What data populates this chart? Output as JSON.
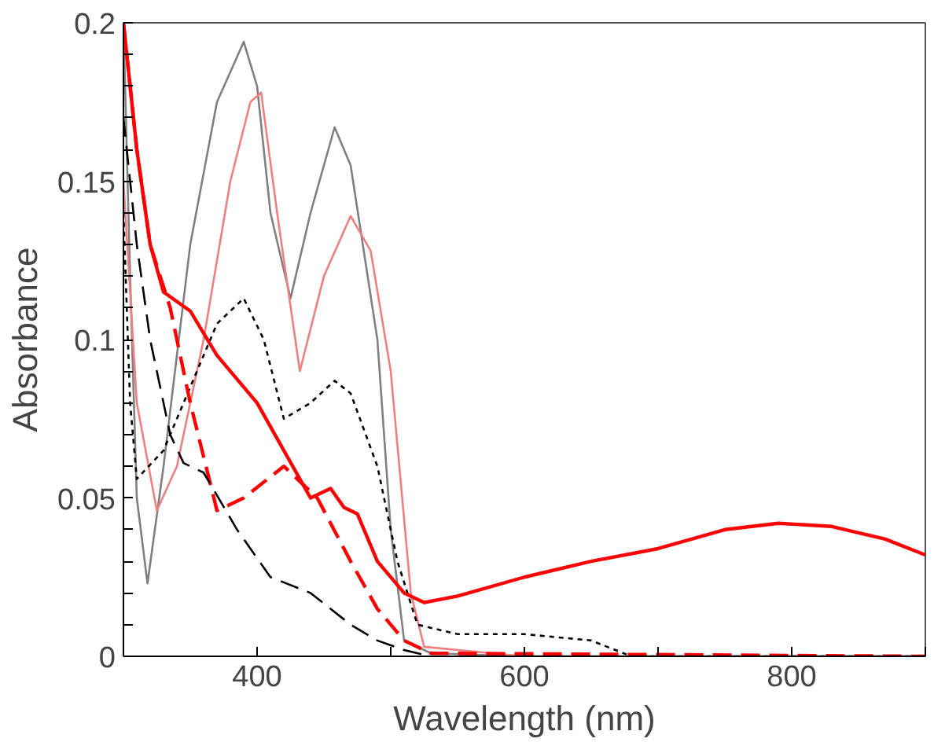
{
  "chart_data": {
    "type": "line",
    "xlabel": "Wavelength (nm)",
    "ylabel": "Absorbance",
    "xlim": [
      300,
      900
    ],
    "ylim": [
      0,
      0.2
    ],
    "xticks": [
      {
        "value": 300,
        "label": null
      },
      400,
      {
        "value": 500,
        "label": null
      },
      600,
      {
        "value": 700,
        "label": null
      },
      800,
      {
        "value": 900,
        "label": null
      }
    ],
    "yticks": [
      0,
      {
        "value": 0.01,
        "label": null
      },
      {
        "value": 0.02,
        "label": null
      },
      {
        "value": 0.03,
        "label": null
      },
      {
        "value": 0.04,
        "label": null
      },
      0.05,
      {
        "value": 0.06,
        "label": null
      },
      {
        "value": 0.07,
        "label": null
      },
      {
        "value": 0.08,
        "label": null
      },
      {
        "value": 0.09,
        "label": null
      },
      0.1,
      {
        "value": 0.11,
        "label": null
      },
      {
        "value": 0.12,
        "label": null
      },
      {
        "value": 0.13,
        "label": null
      },
      {
        "value": 0.14,
        "label": null
      },
      0.15,
      {
        "value": 0.16,
        "label": null
      },
      {
        "value": 0.17,
        "label": null
      },
      {
        "value": 0.18,
        "label": null
      },
      {
        "value": 0.19,
        "label": null
      },
      0.2
    ],
    "grid": false,
    "marker": "none",
    "series": [
      {
        "color": "#808080",
        "line_style": "solid",
        "x": [
          300,
          305,
          310,
          318,
          330,
          350,
          370,
          390,
          400,
          410,
          425,
          440,
          458,
          470,
          490,
          500,
          510,
          530,
          600,
          900
        ],
        "values": [
          0.2,
          0.12,
          0.05,
          0.023,
          0.06,
          0.13,
          0.175,
          0.194,
          0.18,
          0.14,
          0.113,
          0.14,
          0.167,
          0.155,
          0.1,
          0.04,
          0.005,
          0.001,
          0.0,
          0.0
        ]
      },
      {
        "color": "#f08080",
        "line_style": "solid",
        "x": [
          300,
          310,
          325,
          340,
          360,
          380,
          395,
          403,
          415,
          432,
          450,
          470,
          485,
          500,
          515,
          525,
          600,
          900
        ],
        "values": [
          0.15,
          0.08,
          0.046,
          0.06,
          0.1,
          0.15,
          0.175,
          0.178,
          0.14,
          0.09,
          0.12,
          0.139,
          0.128,
          0.09,
          0.02,
          0.003,
          0.0,
          0.0
        ]
      },
      {
        "color": "#000000",
        "line_style": "dotted",
        "x": [
          300,
          305,
          310,
          330,
          350,
          370,
          390,
          405,
          420,
          440,
          458,
          470,
          490,
          505,
          520,
          550,
          600,
          650,
          680,
          900
        ],
        "values": [
          0.14,
          0.08,
          0.056,
          0.065,
          0.085,
          0.105,
          0.113,
          0.1,
          0.075,
          0.08,
          0.087,
          0.083,
          0.06,
          0.03,
          0.01,
          0.007,
          0.007,
          0.005,
          0.0,
          0.0
        ]
      },
      {
        "color": "#ff0000",
        "line_style": "solid",
        "x": [
          300,
          310,
          320,
          330,
          350,
          370,
          400,
          420,
          440,
          455,
          465,
          475,
          490,
          510,
          525,
          550,
          600,
          650,
          700,
          750,
          790,
          830,
          870,
          900
        ],
        "values": [
          0.2,
          0.16,
          0.13,
          0.115,
          0.109,
          0.095,
          0.08,
          0.065,
          0.05,
          0.053,
          0.047,
          0.045,
          0.03,
          0.02,
          0.017,
          0.019,
          0.025,
          0.03,
          0.034,
          0.04,
          0.042,
          0.041,
          0.037,
          0.032
        ]
      },
      {
        "color": "#ff0000",
        "line_style": "dashed",
        "x": [
          300,
          310,
          320,
          335,
          350,
          370,
          390,
          420,
          445,
          470,
          490,
          510,
          530,
          900
        ],
        "values": [
          0.2,
          0.16,
          0.13,
          0.11,
          0.08,
          0.046,
          0.05,
          0.06,
          0.05,
          0.03,
          0.015,
          0.005,
          0.001,
          0.0
        ]
      },
      {
        "color": "#000000",
        "line_style": "dashed",
        "x": [
          300,
          310,
          320,
          335,
          345,
          360,
          385,
          410,
          440,
          470,
          490,
          510,
          530,
          900
        ],
        "values": [
          0.17,
          0.13,
          0.1,
          0.07,
          0.061,
          0.058,
          0.04,
          0.025,
          0.02,
          0.01,
          0.005,
          0.002,
          0.0,
          0.0
        ]
      }
    ]
  }
}
